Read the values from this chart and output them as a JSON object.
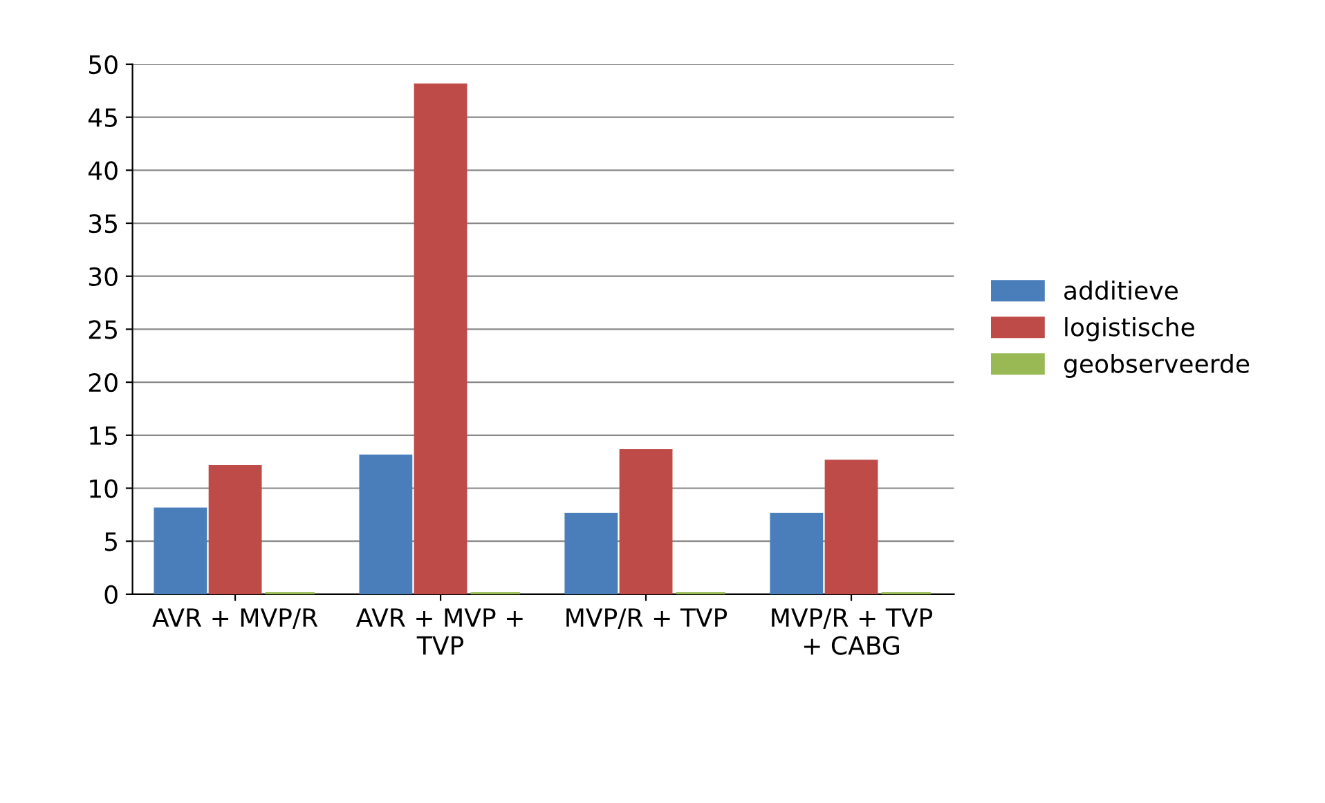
{
  "chart_data": {
    "type": "bar",
    "categories": [
      "AVR + MVP/R",
      "AVR + MVP + TVP",
      "MVP/R + TVP",
      "MVP/R + TVP + CABG"
    ],
    "series": [
      {
        "name": "additieve",
        "color": "#4a7ebb",
        "values": [
          8,
          13,
          7.5,
          7.5
        ]
      },
      {
        "name": "logistische",
        "color": "#be4b48",
        "values": [
          12,
          48,
          13.5,
          12.5
        ]
      },
      {
        "name": "geobserveerde",
        "color": "#98b954",
        "values": [
          0,
          0,
          0,
          0
        ]
      }
    ],
    "ylim": [
      0,
      50
    ],
    "yticks": [
      0,
      5,
      10,
      15,
      20,
      25,
      30,
      35,
      40,
      45,
      50
    ],
    "grid": "y",
    "legend": "right"
  }
}
